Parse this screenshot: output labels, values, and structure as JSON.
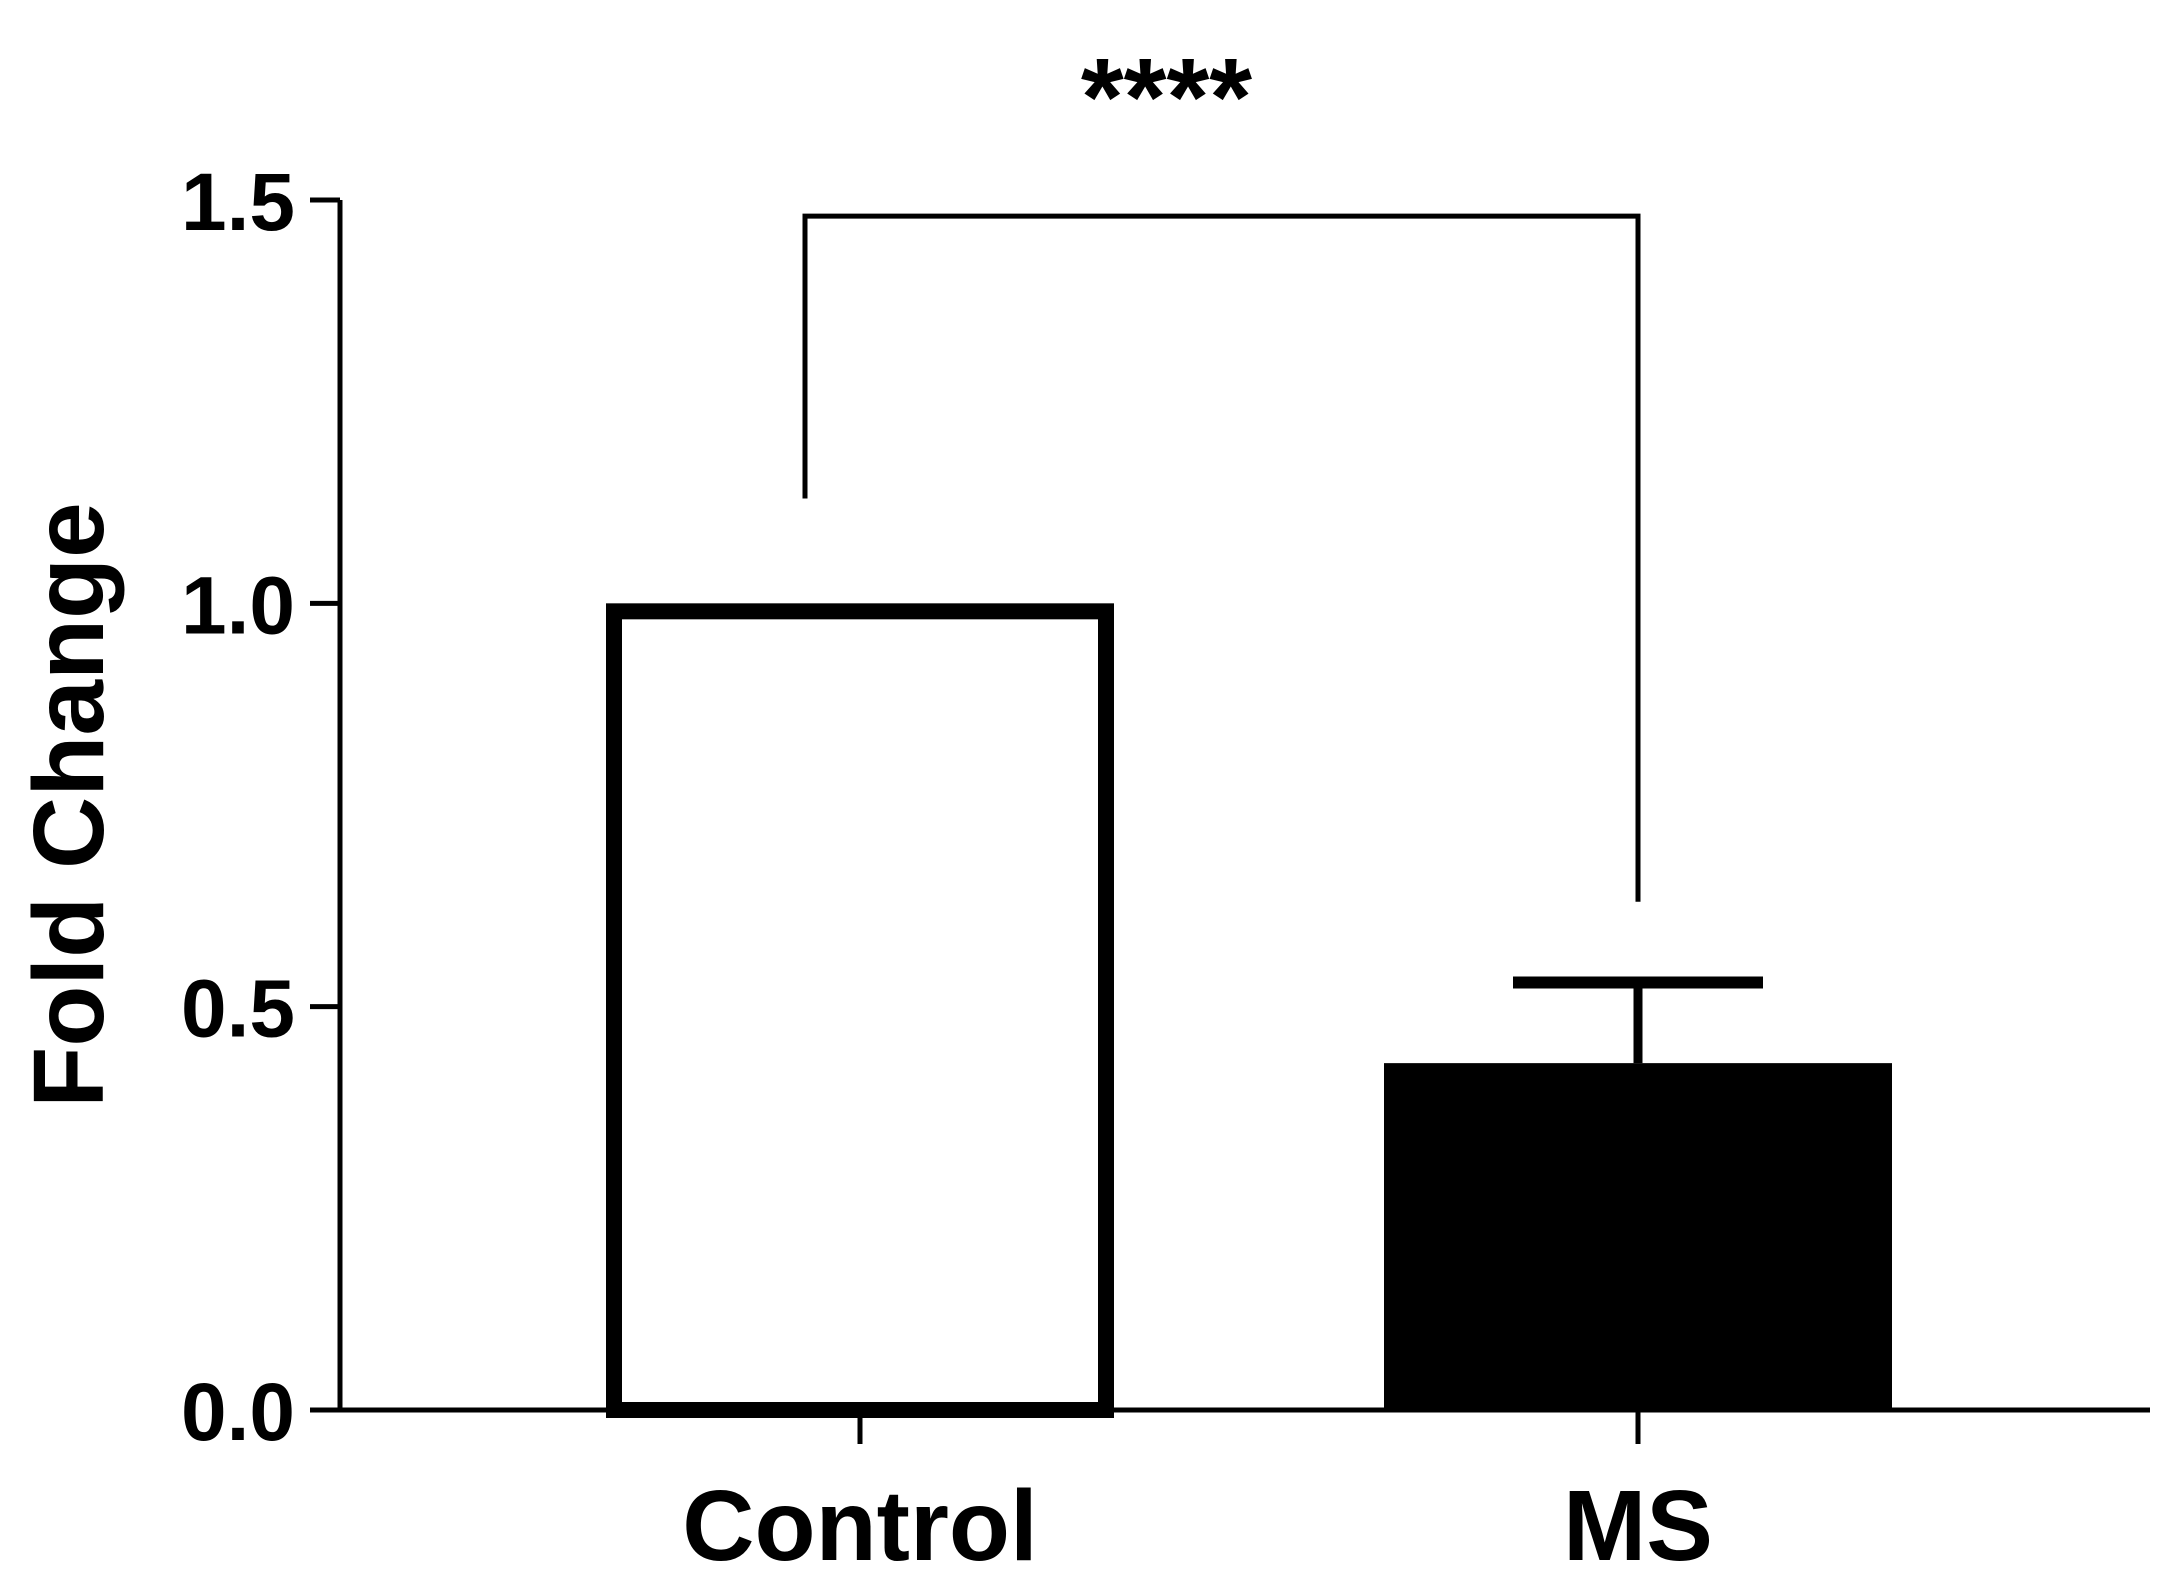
{
  "chart_data": {
    "type": "bar",
    "title": "",
    "xlabel": "",
    "ylabel": "Fold Change",
    "ylim": [
      0,
      1.5
    ],
    "yticks": [
      "0.0",
      "0.5",
      "1.0",
      "1.5"
    ],
    "categories": [
      "Control",
      "MS"
    ],
    "values": [
      1.0,
      0.43
    ],
    "error_upper": [
      0,
      0.53
    ],
    "bar_colors": [
      "#ffffff",
      "#000000"
    ],
    "significance": {
      "label": "****",
      "from": "Control",
      "to": "MS",
      "bracket_y": 1.48,
      "left_drop_to": 1.13,
      "right_drop_to": 0.63
    },
    "grid": false,
    "legend": "none"
  }
}
